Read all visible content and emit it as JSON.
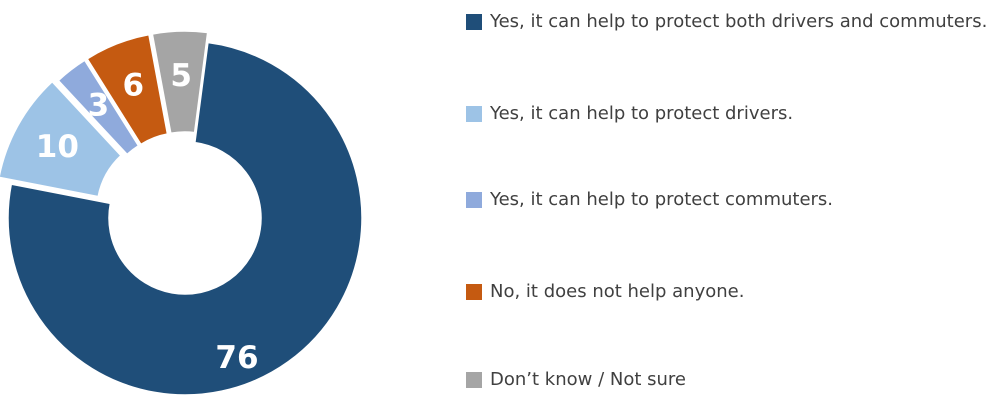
{
  "chart_data": {
    "type": "pie",
    "style": "donut, exploded slices",
    "title": "",
    "categories": [
      "Yes, it can help to protect both drivers and commuters.",
      "Yes, it can help to protect drivers.",
      "Yes, it can help to protect commuters.",
      "No, it does not help anyone.",
      "Don’t know / Not sure"
    ],
    "values": [
      76,
      10,
      3,
      6,
      5
    ],
    "data_labels": [
      "76",
      "10",
      "3",
      "6",
      "5"
    ],
    "colors": [
      "#1f4e79",
      "#9dc3e6",
      "#8faadc",
      "#c55a11",
      "#a5a5a5"
    ],
    "legend_position": "right"
  }
}
